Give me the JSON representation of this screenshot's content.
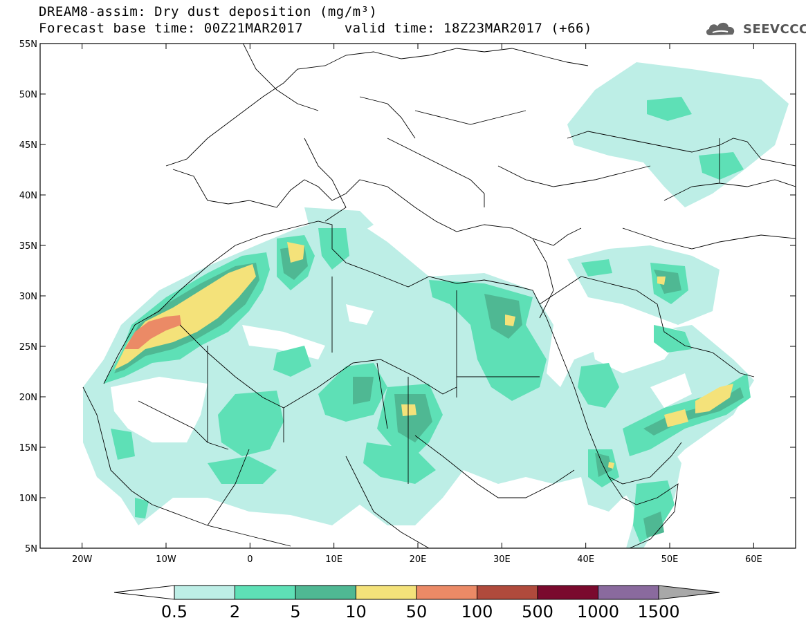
{
  "header": {
    "title_line1": "DREAM8-assim: Dry dust deposition (mg/m³)",
    "title_line2": "Forecast base time: 00Z21MAR2017     valid time: 18Z23MAR2017 (+66)"
  },
  "logo": {
    "text": "SEEVCCC",
    "icon": "cloud-logo-icon"
  },
  "map": {
    "lon_range": [
      -25,
      65
    ],
    "lat_range": [
      5,
      55
    ],
    "lon_ticks": [
      {
        "value": -20,
        "label": "20W"
      },
      {
        "value": -10,
        "label": "10W"
      },
      {
        "value": 0,
        "label": "0"
      },
      {
        "value": 10,
        "label": "10E"
      },
      {
        "value": 20,
        "label": "20E"
      },
      {
        "value": 30,
        "label": "30E"
      },
      {
        "value": 40,
        "label": "40E"
      },
      {
        "value": 50,
        "label": "50E"
      },
      {
        "value": 60,
        "label": "60E"
      }
    ],
    "lat_ticks": [
      {
        "value": 55,
        "label": "55N"
      },
      {
        "value": 50,
        "label": "50N"
      },
      {
        "value": 45,
        "label": "45N"
      },
      {
        "value": 40,
        "label": "40N"
      },
      {
        "value": 35,
        "label": "35N"
      },
      {
        "value": 30,
        "label": "30N"
      },
      {
        "value": 25,
        "label": "25N"
      },
      {
        "value": 20,
        "label": "20N"
      },
      {
        "value": 15,
        "label": "15N"
      },
      {
        "value": 10,
        "label": "10N"
      },
      {
        "value": 5,
        "label": "5N"
      }
    ]
  },
  "colorbar": {
    "colors": [
      "#bdeee6",
      "#5ee0b6",
      "#4fb893",
      "#f4e27a",
      "#eb8a66",
      "#b04a3c",
      "#7a0a2e",
      "#8a6a9e",
      "#a8a8a8"
    ],
    "labels": [
      "0.5",
      "2",
      "5",
      "10",
      "50",
      "100",
      "500",
      "1000",
      "1500"
    ]
  }
}
